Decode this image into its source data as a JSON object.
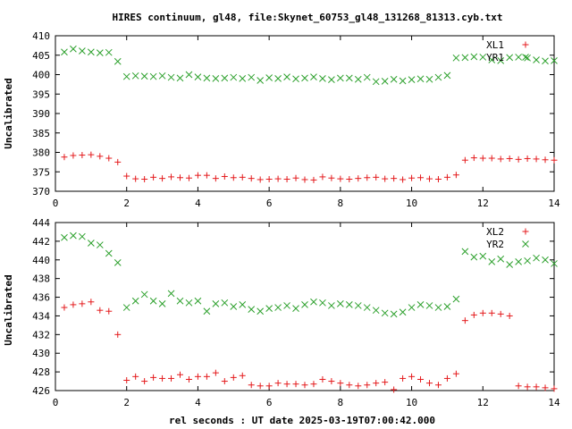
{
  "figure": {
    "title": "HIRES continuum, gl48, file:Skynet_60753_gl48_131268_81313.cyb.txt",
    "xlabel": "rel seconds : UT date 2025-03-19T07:00:42.000"
  },
  "colors": {
    "red": "#e41a1c",
    "green": "#2ca02c",
    "axis": "#000000"
  },
  "chart_data": [
    {
      "type": "scatter",
      "ylabel": "Uncalibrated",
      "xlim": [
        0,
        14
      ],
      "ylim": [
        370,
        410
      ],
      "xticks": [
        0,
        2,
        4,
        6,
        8,
        10,
        12,
        14
      ],
      "yticks": [
        370,
        375,
        380,
        385,
        390,
        395,
        400,
        405,
        410
      ],
      "legend_position": "top-right",
      "series": [
        {
          "name": "XL1",
          "marker": "plus",
          "color": "#e41a1c",
          "x": [
            0.25,
            0.5,
            0.75,
            1.0,
            1.25,
            1.5,
            1.75,
            2.0,
            2.25,
            2.5,
            2.75,
            3.0,
            3.25,
            3.5,
            3.75,
            4.0,
            4.25,
            4.5,
            4.75,
            5.0,
            5.25,
            5.5,
            5.75,
            6.0,
            6.25,
            6.5,
            6.75,
            7.0,
            7.25,
            7.5,
            7.75,
            8.0,
            8.25,
            8.5,
            8.75,
            9.0,
            9.25,
            9.5,
            9.75,
            10.0,
            10.25,
            10.5,
            10.75,
            11.0,
            11.25,
            11.5,
            11.75,
            12.0,
            12.25,
            12.5,
            12.75,
            13.0,
            13.25,
            13.5,
            13.75,
            14.0
          ],
          "y": [
            378.8,
            379.2,
            379.3,
            379.4,
            379.0,
            378.5,
            377.5,
            373.9,
            373.2,
            373.1,
            373.6,
            373.3,
            373.7,
            373.5,
            373.4,
            374.1,
            374.1,
            373.3,
            373.8,
            373.5,
            373.6,
            373.3,
            373.0,
            373.1,
            373.2,
            373.1,
            373.4,
            373.0,
            372.9,
            373.7,
            373.4,
            373.2,
            373.1,
            373.3,
            373.5,
            373.6,
            373.2,
            373.3,
            373.0,
            373.4,
            373.5,
            373.2,
            373.1,
            373.6,
            374.2,
            378.0,
            378.6,
            378.5,
            378.5,
            378.3,
            378.4,
            378.2,
            378.4,
            378.3,
            378.1,
            378.0
          ]
        },
        {
          "name": "YR1",
          "marker": "cross",
          "color": "#2ca02c",
          "x": [
            0.25,
            0.5,
            0.75,
            1.0,
            1.25,
            1.5,
            1.75,
            2.0,
            2.25,
            2.5,
            2.75,
            3.0,
            3.25,
            3.5,
            3.75,
            4.0,
            4.25,
            4.5,
            4.75,
            5.0,
            5.25,
            5.5,
            5.75,
            6.0,
            6.25,
            6.5,
            6.75,
            7.0,
            7.25,
            7.5,
            7.75,
            8.0,
            8.25,
            8.5,
            8.75,
            9.0,
            9.25,
            9.5,
            9.75,
            10.0,
            10.25,
            10.5,
            10.75,
            11.0,
            11.25,
            11.5,
            11.75,
            12.0,
            12.25,
            12.5,
            12.75,
            13.0,
            13.25,
            13.5,
            13.75,
            14.0
          ],
          "y": [
            405.8,
            406.6,
            406.1,
            405.8,
            405.6,
            405.7,
            403.4,
            399.5,
            399.7,
            399.6,
            399.5,
            399.7,
            399.3,
            399.1,
            400.0,
            399.4,
            399.1,
            399.0,
            399.1,
            399.3,
            399.0,
            399.3,
            398.5,
            399.2,
            399.0,
            399.4,
            398.9,
            399.1,
            399.4,
            399.0,
            398.7,
            399.1,
            399.1,
            398.8,
            399.3,
            398.2,
            398.3,
            398.8,
            398.4,
            398.7,
            398.9,
            398.8,
            399.3,
            399.8,
            404.3,
            404.4,
            404.6,
            404.5,
            403.8,
            403.6,
            404.4,
            404.5,
            404.3,
            403.8,
            403.5,
            403.6
          ]
        }
      ]
    },
    {
      "type": "scatter",
      "ylabel": "Uncalibrated",
      "xlim": [
        0,
        14
      ],
      "ylim": [
        426,
        444
      ],
      "xticks": [
        0,
        2,
        4,
        6,
        8,
        10,
        12,
        14
      ],
      "yticks": [
        426,
        428,
        430,
        432,
        434,
        436,
        438,
        440,
        442,
        444
      ],
      "legend_position": "top-right",
      "series": [
        {
          "name": "XL2",
          "marker": "plus",
          "color": "#e41a1c",
          "x": [
            0.25,
            0.5,
            0.75,
            1.0,
            1.25,
            1.5,
            1.75,
            2.0,
            2.25,
            2.5,
            2.75,
            3.0,
            3.25,
            3.5,
            3.75,
            4.0,
            4.25,
            4.5,
            4.75,
            5.0,
            5.25,
            5.5,
            5.75,
            6.0,
            6.25,
            6.5,
            6.75,
            7.0,
            7.25,
            7.5,
            7.75,
            8.0,
            8.25,
            8.5,
            8.75,
            9.0,
            9.25,
            9.5,
            9.75,
            10.0,
            10.25,
            10.5,
            10.75,
            11.0,
            11.25,
            11.5,
            11.75,
            12.0,
            12.25,
            12.5,
            12.75,
            13.0,
            13.25,
            13.5,
            13.75,
            14.0
          ],
          "y": [
            434.9,
            435.2,
            435.3,
            435.5,
            434.6,
            434.5,
            432.0,
            427.1,
            427.5,
            427.0,
            427.4,
            427.3,
            427.3,
            427.7,
            427.2,
            427.5,
            427.5,
            427.9,
            427.0,
            427.4,
            427.6,
            426.6,
            426.5,
            426.5,
            426.8,
            426.7,
            426.7,
            426.6,
            426.7,
            427.2,
            427.0,
            426.8,
            426.6,
            426.5,
            426.6,
            426.8,
            426.9,
            426.1,
            427.3,
            427.5,
            427.2,
            426.8,
            426.6,
            427.3,
            427.8,
            433.5,
            434.1,
            434.3,
            434.3,
            434.2,
            434.0,
            426.5,
            426.4,
            426.4,
            426.3,
            426.2
          ]
        },
        {
          "name": "YR2",
          "marker": "cross",
          "color": "#2ca02c",
          "x": [
            0.25,
            0.5,
            0.75,
            1.0,
            1.25,
            1.5,
            1.75,
            2.0,
            2.25,
            2.5,
            2.75,
            3.0,
            3.25,
            3.5,
            3.75,
            4.0,
            4.25,
            4.5,
            4.75,
            5.0,
            5.25,
            5.5,
            5.75,
            6.0,
            6.25,
            6.5,
            6.75,
            7.0,
            7.25,
            7.5,
            7.75,
            8.0,
            8.25,
            8.5,
            8.75,
            9.0,
            9.25,
            9.5,
            9.75,
            10.0,
            10.25,
            10.5,
            10.75,
            11.0,
            11.25,
            11.5,
            11.75,
            12.0,
            12.25,
            12.5,
            12.75,
            13.0,
            13.25,
            13.5,
            13.75,
            14.0
          ],
          "y": [
            442.4,
            442.6,
            442.5,
            441.8,
            441.6,
            440.7,
            439.7,
            434.9,
            435.6,
            436.3,
            435.6,
            435.3,
            436.4,
            435.6,
            435.4,
            435.6,
            434.5,
            435.3,
            435.4,
            435.0,
            435.2,
            434.7,
            434.5,
            434.8,
            434.9,
            435.1,
            434.8,
            435.2,
            435.5,
            435.4,
            435.1,
            435.3,
            435.2,
            435.1,
            434.9,
            434.6,
            434.3,
            434.2,
            434.4,
            434.9,
            435.2,
            435.1,
            434.9,
            435.0,
            435.8,
            440.9,
            440.3,
            440.4,
            439.8,
            440.1,
            439.5,
            439.8,
            439.9,
            440.2,
            440.0,
            439.6
          ]
        }
      ]
    }
  ]
}
